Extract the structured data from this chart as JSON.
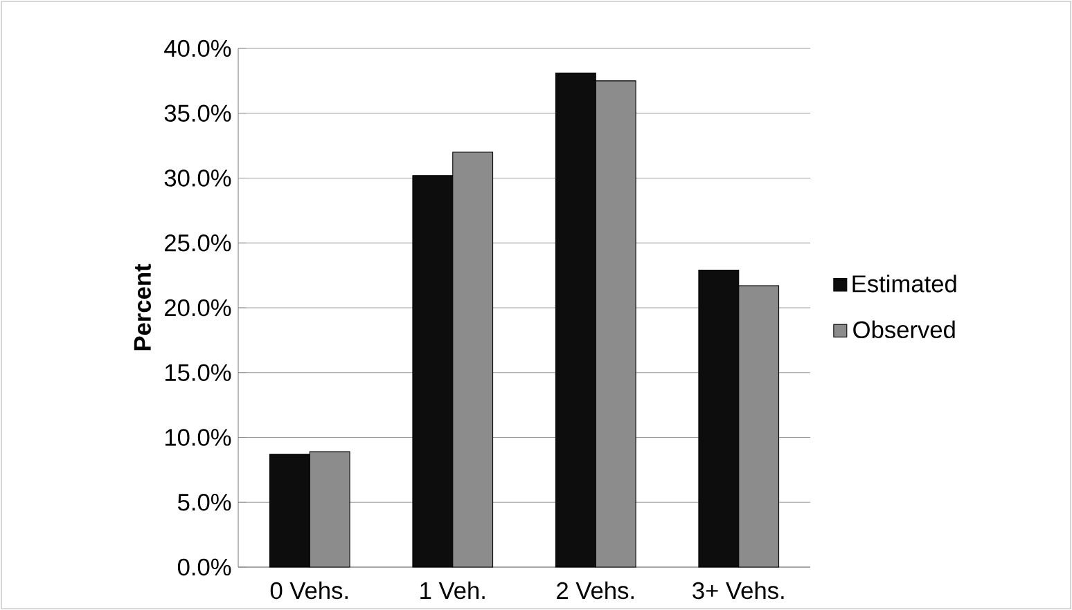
{
  "chart_data": {
    "type": "bar",
    "ylabel": "Percent",
    "categories": [
      "0 Vehs.",
      "1 Veh.",
      "2 Vehs.",
      "3+ Vehs."
    ],
    "series": [
      {
        "name": "Estimated",
        "color": "#0d0d0d",
        "values": [
          8.7,
          30.2,
          38.1,
          22.9
        ]
      },
      {
        "name": "Observed",
        "color": "#8c8c8c",
        "values": [
          8.9,
          32.0,
          37.5,
          21.7
        ]
      }
    ],
    "ylim": [
      0,
      40
    ],
    "yticks": [
      {
        "value": 0,
        "label": "0.0%"
      },
      {
        "value": 5,
        "label": "5.0%"
      },
      {
        "value": 10,
        "label": "10.0%"
      },
      {
        "value": 15,
        "label": "15.0%"
      },
      {
        "value": 20,
        "label": "20.0%"
      },
      {
        "value": 25,
        "label": "25.0%"
      },
      {
        "value": 30,
        "label": "30.0%"
      },
      {
        "value": 35,
        "label": "35.0%"
      },
      {
        "value": 40,
        "label": "40.0%"
      }
    ],
    "grid": "y",
    "legend": "right"
  }
}
